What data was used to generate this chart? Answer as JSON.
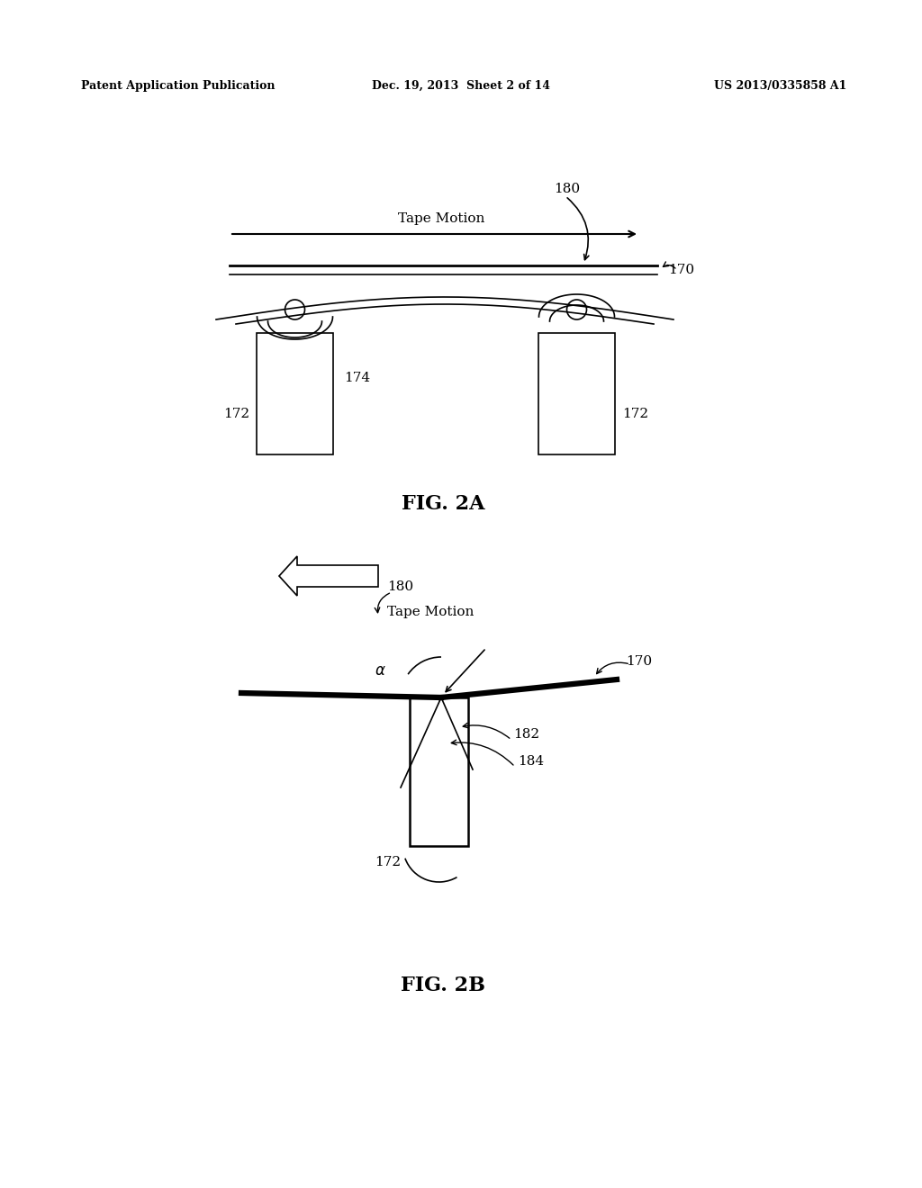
{
  "bg_color": "#ffffff",
  "header_left": "Patent Application Publication",
  "header_center": "Dec. 19, 2013  Sheet 2 of 14",
  "header_right": "US 2013/0335858 A1",
  "fig2a_label": "FIG. 2A",
  "fig2b_label": "FIG. 2B"
}
